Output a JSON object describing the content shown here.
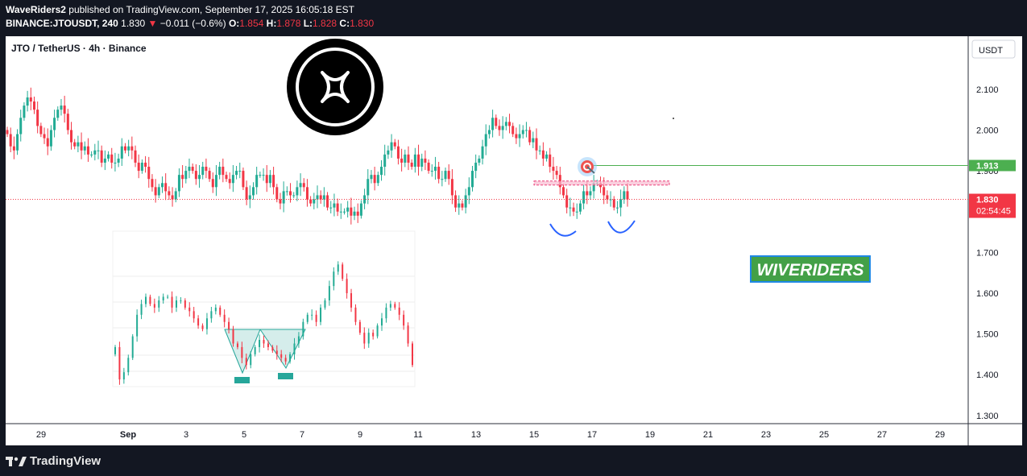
{
  "header": {
    "publisher": "WaveRiders2",
    "published_text": "published on TradingView.com, September 17, 2025 16:05:18 EST",
    "symbol": "BINANCE:JTOUSDT, 240",
    "last": "1.830",
    "change": "−0.011 (−0.6%)",
    "o_label": "O:",
    "o": "1.854",
    "h_label": "H:",
    "h": "1.878",
    "l_label": "L:",
    "l": "1.828",
    "c_label": "C:",
    "c": "1.830"
  },
  "chart": {
    "legend_title": "JTO / TetherUS · 4h · Binance",
    "currency_button": "USDT",
    "watermark": "WIVERIDERS",
    "price_badge": "1.830",
    "countdown": "02:54:45",
    "target_badge": "1.913",
    "partial_label": "1.900"
  },
  "footer": {
    "brand": "TradingView"
  },
  "colors": {
    "up": "#22ab94",
    "down": "#f23645",
    "target_line": "#4caf50",
    "price_line": "#f23645",
    "watermark_bg": "#43a047",
    "neckline": "#f48fb1",
    "bottom_arcs": "#2962ff"
  },
  "icons": {
    "coin_logo": "jito-logo-icon",
    "target": "target-icon",
    "brand": "tradingview-logo-icon"
  },
  "chart_data": {
    "type": "candlestick",
    "title": "JTO / TetherUS · 4h · Binance",
    "y_ticks": [
      "2.100",
      "2.000",
      "1.900",
      "1.800",
      "1.700",
      "1.600",
      "1.500",
      "1.400",
      "1.300"
    ],
    "ylim": [
      1.28,
      2.23
    ],
    "x_ticks": [
      {
        "label": "29",
        "day": 29
      },
      {
        "label": "Sep",
        "day": 32
      },
      {
        "label": "3",
        "day": 34
      },
      {
        "label": "5",
        "day": 36
      },
      {
        "label": "7",
        "day": 38
      },
      {
        "label": "9",
        "day": 40
      },
      {
        "label": "11",
        "day": 42
      },
      {
        "label": "13",
        "day": 44
      },
      {
        "label": "15",
        "day": 46
      },
      {
        "label": "17",
        "day": 48
      },
      {
        "label": "19",
        "day": 50
      },
      {
        "label": "21",
        "day": 52
      },
      {
        "label": "23",
        "day": 54
      },
      {
        "label": "25",
        "day": 56
      },
      {
        "label": "27",
        "day": 58
      },
      {
        "label": "29",
        "day": 60
      }
    ],
    "closes": [
      1.99,
      1.96,
      1.95,
      1.99,
      2.03,
      2.06,
      2.08,
      2.07,
      2.05,
      2.01,
      1.99,
      1.98,
      1.96,
      2.0,
      2.03,
      2.05,
      2.06,
      2.04,
      2.0,
      1.97,
      1.96,
      1.97,
      1.95,
      1.96,
      1.94,
      1.94,
      1.95,
      1.95,
      1.92,
      1.93,
      1.94,
      1.92,
      1.92,
      1.93,
      1.96,
      1.95,
      1.96,
      1.95,
      1.92,
      1.9,
      1.92,
      1.91,
      1.88,
      1.86,
      1.84,
      1.86,
      1.87,
      1.85,
      1.84,
      1.83,
      1.85,
      1.89,
      1.88,
      1.9,
      1.91,
      1.9,
      1.88,
      1.89,
      1.91,
      1.9,
      1.88,
      1.86,
      1.89,
      1.91,
      1.89,
      1.88,
      1.87,
      1.89,
      1.9,
      1.9,
      1.86,
      1.83,
      1.84,
      1.86,
      1.89,
      1.89,
      1.89,
      1.87,
      1.89,
      1.86,
      1.83,
      1.82,
      1.85,
      1.85,
      1.84,
      1.84,
      1.86,
      1.87,
      1.86,
      1.83,
      1.82,
      1.83,
      1.84,
      1.83,
      1.84,
      1.81,
      1.81,
      1.82,
      1.8,
      1.8,
      1.8,
      1.81,
      1.79,
      1.8,
      1.79,
      1.82,
      1.84,
      1.88,
      1.89,
      1.87,
      1.89,
      1.91,
      1.94,
      1.95,
      1.97,
      1.96,
      1.93,
      1.92,
      1.94,
      1.92,
      1.91,
      1.94,
      1.91,
      1.93,
      1.92,
      1.9,
      1.9,
      1.91,
      1.88,
      1.88,
      1.9,
      1.88,
      1.84,
      1.81,
      1.82,
      1.81,
      1.84,
      1.86,
      1.9,
      1.92,
      1.93,
      1.96,
      1.99,
      2.0,
      2.03,
      2.01,
      2.0,
      2.01,
      2.02,
      2.01,
      1.99,
      1.98,
      1.99,
      2.0,
      2.0,
      1.97,
      1.98,
      1.95,
      1.95,
      1.93,
      1.94,
      1.91,
      1.9,
      1.89,
      1.86,
      1.84,
      1.81,
      1.81,
      1.8,
      1.8,
      1.82,
      1.85,
      1.84,
      1.85,
      1.87,
      1.87,
      1.86,
      1.84,
      1.83,
      1.83,
      1.81,
      1.81,
      1.83,
      1.85,
      1.83
    ],
    "price_line": 1.83,
    "target_level": 1.913,
    "neckline_zone": [
      1.865,
      1.875
    ],
    "inset_closes": [
      1.49,
      1.4,
      1.42,
      1.46,
      1.52,
      1.58,
      1.61,
      1.63,
      1.61,
      1.6,
      1.62,
      1.63,
      1.63,
      1.6,
      1.62,
      1.62,
      1.6,
      1.59,
      1.57,
      1.55,
      1.54,
      1.57,
      1.59,
      1.6,
      1.58,
      1.56,
      1.54,
      1.5,
      1.49,
      1.46,
      1.44,
      1.47,
      1.49,
      1.51,
      1.5,
      1.49,
      1.48,
      1.47,
      1.46,
      1.45,
      1.47,
      1.5,
      1.52,
      1.56,
      1.58,
      1.58,
      1.56,
      1.6,
      1.62,
      1.66,
      1.7,
      1.72,
      1.68,
      1.64,
      1.6,
      1.56,
      1.53,
      1.5,
      1.53,
      1.52,
      1.55,
      1.57,
      1.6,
      1.61,
      1.6,
      1.58,
      1.55,
      1.5,
      1.44
    ]
  }
}
